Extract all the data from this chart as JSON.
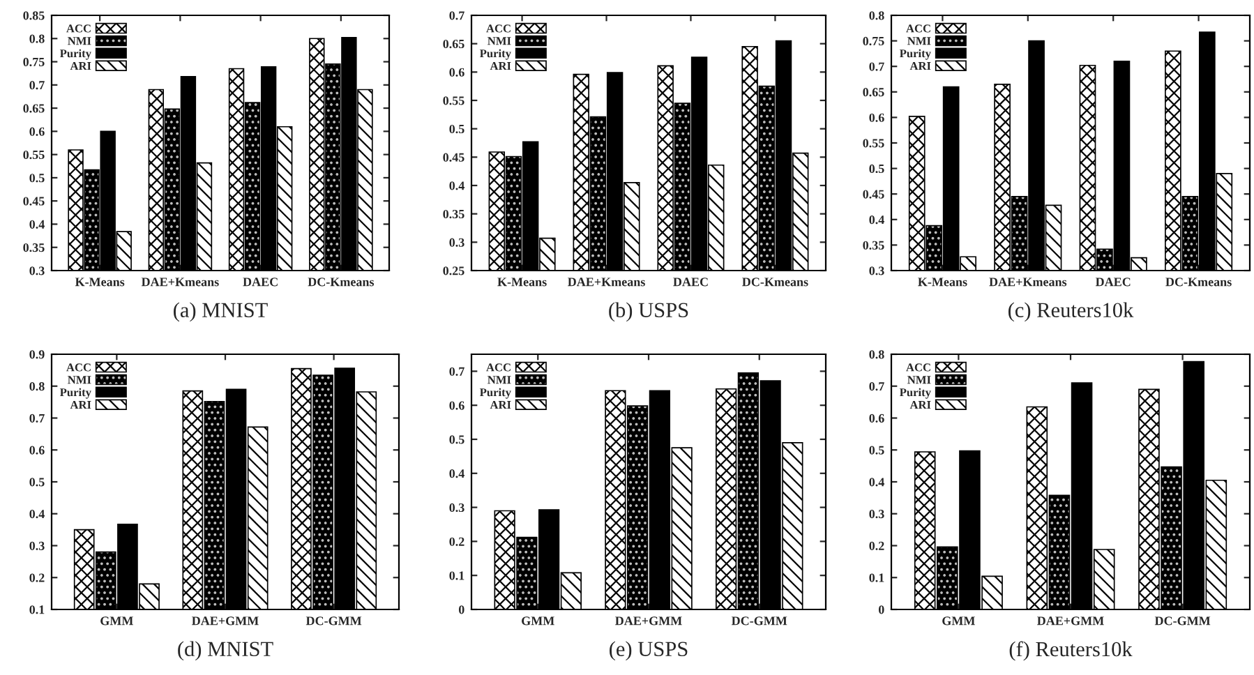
{
  "chart_data": [
    {
      "type": "bar",
      "xlabel": "(a) MNIST",
      "categories": [
        "K-Means",
        "DAE+Kmeans",
        "DAEC",
        "DC-Kmeans"
      ],
      "legend": "top left",
      "grid": false,
      "ylim": [
        0.3,
        0.85
      ],
      "yticks": [
        0.3,
        0.35,
        0.4,
        0.45,
        0.5,
        0.55,
        0.6,
        0.65,
        0.7,
        0.75,
        0.8,
        0.85
      ],
      "series": [
        {
          "name": "ACC",
          "color": "#000000",
          "values": [
            0.56,
            0.69,
            0.735,
            0.8
          ]
        },
        {
          "name": "NMI",
          "color": "#000000",
          "values": [
            0.517,
            0.648,
            0.662,
            0.745
          ]
        },
        {
          "name": "Purity",
          "color": "#000000",
          "values": [
            0.6,
            0.718,
            0.739,
            0.802
          ]
        },
        {
          "name": "ARI",
          "color": "#000000",
          "values": [
            0.384,
            0.532,
            0.61,
            0.69
          ]
        }
      ]
    },
    {
      "type": "bar",
      "xlabel": "(b) USPS",
      "categories": [
        "K-Means",
        "DAE+Kmeans",
        "DAEC",
        "DC-Kmeans"
      ],
      "legend": "top left",
      "grid": false,
      "ylim": [
        0.25,
        0.7
      ],
      "yticks": [
        0.25,
        0.3,
        0.35,
        0.4,
        0.45,
        0.5,
        0.55,
        0.6,
        0.65,
        0.7
      ],
      "series": [
        {
          "name": "ACC",
          "color": "#000000",
          "values": [
            0.459,
            0.596,
            0.611,
            0.645
          ]
        },
        {
          "name": "NMI",
          "color": "#000000",
          "values": [
            0.451,
            0.521,
            0.545,
            0.575
          ]
        },
        {
          "name": "Purity",
          "color": "#000000",
          "values": [
            0.477,
            0.599,
            0.626,
            0.655
          ]
        },
        {
          "name": "ARI",
          "color": "#000000",
          "values": [
            0.307,
            0.405,
            0.436,
            0.457
          ]
        }
      ]
    },
    {
      "type": "bar",
      "xlabel": "(c) Reuters10k",
      "categories": [
        "K-Means",
        "DAE+Kmeans",
        "DAEC",
        "DC-Kmeans"
      ],
      "legend": "top left",
      "grid": false,
      "ylim": [
        0.3,
        0.8
      ],
      "yticks": [
        0.3,
        0.35,
        0.4,
        0.45,
        0.5,
        0.55,
        0.6,
        0.65,
        0.7,
        0.75,
        0.8
      ],
      "series": [
        {
          "name": "ACC",
          "color": "#000000",
          "values": [
            0.602,
            0.665,
            0.702,
            0.73
          ]
        },
        {
          "name": "NMI",
          "color": "#000000",
          "values": [
            0.388,
            0.445,
            0.342,
            0.445
          ]
        },
        {
          "name": "Purity",
          "color": "#000000",
          "values": [
            0.66,
            0.75,
            0.71,
            0.767
          ]
        },
        {
          "name": "ARI",
          "color": "#000000",
          "values": [
            0.327,
            0.428,
            0.325,
            0.49
          ]
        }
      ]
    },
    {
      "type": "bar",
      "xlabel": "(d) MNIST",
      "categories": [
        "GMM",
        "DAE+GMM",
        "DC-GMM"
      ],
      "legend": "top left",
      "grid": false,
      "ylim": [
        0.1,
        0.9
      ],
      "yticks": [
        0.1,
        0.2,
        0.3,
        0.4,
        0.5,
        0.6,
        0.7,
        0.8,
        0.9
      ],
      "series": [
        {
          "name": "ACC",
          "color": "#000000",
          "values": [
            0.35,
            0.785,
            0.855
          ]
        },
        {
          "name": "NMI",
          "color": "#000000",
          "values": [
            0.28,
            0.752,
            0.834
          ]
        },
        {
          "name": "Purity",
          "color": "#000000",
          "values": [
            0.367,
            0.79,
            0.856
          ]
        },
        {
          "name": "ARI",
          "color": "#000000",
          "values": [
            0.18,
            0.672,
            0.782
          ]
        }
      ]
    },
    {
      "type": "bar",
      "xlabel": "(e) USPS",
      "categories": [
        "GMM",
        "DAE+GMM",
        "DC-GMM"
      ],
      "legend": "top left",
      "grid": false,
      "ylim": [
        0,
        0.75
      ],
      "yticks": [
        0,
        0.1,
        0.2,
        0.3,
        0.4,
        0.5,
        0.6,
        0.7
      ],
      "series": [
        {
          "name": "ACC",
          "color": "#000000",
          "values": [
            0.29,
            0.643,
            0.648
          ]
        },
        {
          "name": "NMI",
          "color": "#000000",
          "values": [
            0.212,
            0.598,
            0.695
          ]
        },
        {
          "name": "Purity",
          "color": "#000000",
          "values": [
            0.293,
            0.643,
            0.672
          ]
        },
        {
          "name": "ARI",
          "color": "#000000",
          "values": [
            0.108,
            0.475,
            0.49
          ]
        }
      ]
    },
    {
      "type": "bar",
      "xlabel": "(f) Reuters10k",
      "categories": [
        "GMM",
        "DAE+GMM",
        "DC-GMM"
      ],
      "legend": "top left",
      "grid": false,
      "ylim": [
        0,
        0.8
      ],
      "yticks": [
        0,
        0.1,
        0.2,
        0.3,
        0.4,
        0.5,
        0.6,
        0.7,
        0.8
      ],
      "series": [
        {
          "name": "ACC",
          "color": "#000000",
          "values": [
            0.494,
            0.635,
            0.69
          ]
        },
        {
          "name": "NMI",
          "color": "#000000",
          "values": [
            0.196,
            0.358,
            0.447
          ]
        },
        {
          "name": "Purity",
          "color": "#000000",
          "values": [
            0.497,
            0.71,
            0.777
          ]
        },
        {
          "name": "ARI",
          "color": "#000000",
          "values": [
            0.104,
            0.188,
            0.405
          ]
        }
      ]
    }
  ]
}
